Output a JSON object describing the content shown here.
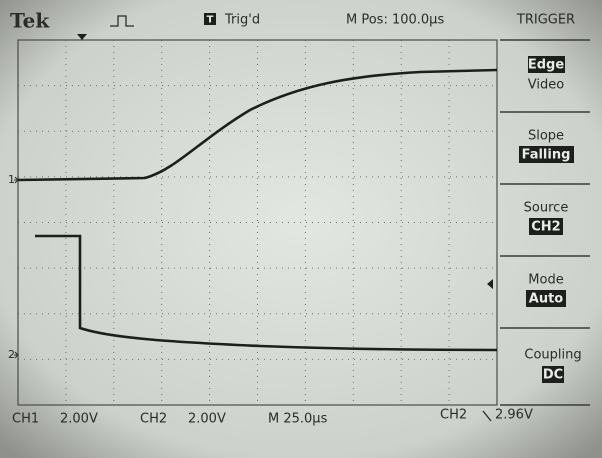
{
  "header": {
    "brand": "Tek",
    "status": "Trig'd",
    "position": "M Pos: 100.0µs",
    "menu_title": "TRIGGER"
  },
  "menu": [
    {
      "options": [
        "Edge",
        "Video"
      ]
    },
    {
      "label": "Slope",
      "value": "Falling"
    },
    {
      "label": "Source",
      "value": "CH2"
    },
    {
      "label": "Mode",
      "value": "Auto"
    },
    {
      "label": "Coupling",
      "value": "DC"
    }
  ],
  "markers": {
    "ch1": "1",
    "ch2": "2"
  },
  "footer": {
    "ch1": "CH1",
    "ch1_scale": "2.00V",
    "ch2": "CH2",
    "ch2_scale": "2.00V",
    "timebase": "M 25.0µs",
    "trigger_source": "CH2",
    "trigger_level": "2.96V"
  }
}
